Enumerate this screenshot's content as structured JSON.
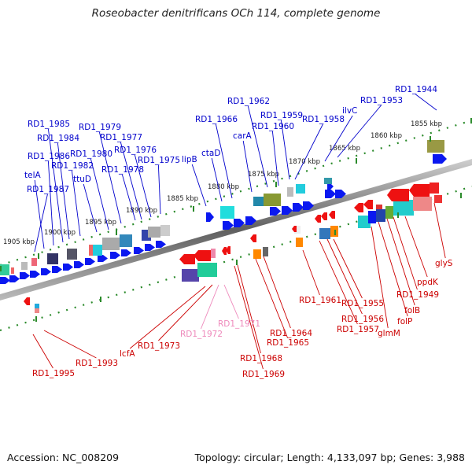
{
  "title": "Roseobacter denitrificans OCh 114, complete genome",
  "footer": {
    "accession": "Accession: NC_008209",
    "summary": "Topology: circular; Length: 4,133,097 bp; Genes: 3,988"
  },
  "colors": {
    "forward_label": "#0000cc",
    "reverse_label": "#cc0000",
    "pseudo_label": "#ee88bb",
    "backbone": "#777777",
    "tick": "#2a8a2a"
  },
  "scale_labels": [
    "1855 kbp",
    "1860 kbp",
    "1865 kbp",
    "1870 kbp",
    "1875 kbp",
    "1880 kbp",
    "1885 kbp",
    "1890 kbp",
    "1895 kbp",
    "1900 kbp",
    "1905 kbp"
  ],
  "forward_labels": [
    "RD1_1944",
    "RD1_1953",
    "ilvC",
    "RD1_1958",
    "RD1_1959",
    "RD1_1960",
    "RD1_1962",
    "carA",
    "RD1_1966",
    "ctaD",
    "lipB",
    "RD1_1975",
    "RD1_1976",
    "RD1_1977",
    "RD1_1978",
    "RD1_1979",
    "RD1_1980",
    "ttuD",
    "RD1_1982",
    "RD1_1984",
    "RD1_1985",
    "RD1_1986",
    "telA",
    "RD1_1987"
  ],
  "reverse_labels": [
    "glyS",
    "ppdK",
    "RD1_1949",
    "folB",
    "folP",
    "glmM",
    "RD1_1955",
    "RD1_1956",
    "RD1_1957",
    "RD1_1961",
    "RD1_1964",
    "RD1_1965",
    "RD1_1968",
    "RD1_1969",
    "RD1_1971",
    "RD1_1972",
    "RD1_1973",
    "lcfA",
    "RD1_1993",
    "RD1_1995"
  ],
  "pseudo_labels": [
    "RD1_1971",
    "RD1_1972"
  ]
}
